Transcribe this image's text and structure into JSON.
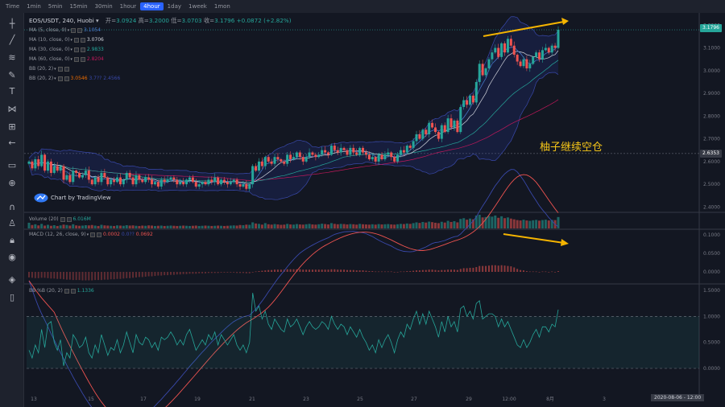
{
  "timeframes": [
    {
      "label": "Time",
      "active": false
    },
    {
      "label": "1min",
      "active": false
    },
    {
      "label": "5min",
      "active": false
    },
    {
      "label": "15min",
      "active": false
    },
    {
      "label": "30min",
      "active": false
    },
    {
      "label": "1hour",
      "active": false
    },
    {
      "label": "4hour",
      "active": true
    },
    {
      "label": "1day",
      "active": false
    },
    {
      "label": "1week",
      "active": false
    },
    {
      "label": "1mon",
      "active": false
    }
  ],
  "header": {
    "symbol": "EOS/USDT, 240, Huobi",
    "open_label": "开=",
    "open": "3.0924",
    "high_label": "高=",
    "high": "3.2000",
    "low_label": "低=",
    "low": "3.0703",
    "close_label": "收=",
    "close": "3.1796",
    "change": "+0.0872 (+2.82%)"
  },
  "legends": {
    "ma5": {
      "label": "MA (5, close, 0)",
      "value": "3.1054",
      "color": "#4a7fd4"
    },
    "ma10": {
      "label": "MA (10, close, 0)",
      "value": "3.0706",
      "color": "#d1d4dc"
    },
    "ma30": {
      "label": "MA (30, close, 0)",
      "value": "2.9833",
      "color": "#26a69a"
    },
    "ma60": {
      "label": "MA (60, close, 0)",
      "value": "2.8204",
      "color": "#c2185b"
    },
    "bb_hidden": {
      "label": "BB (20, 2)"
    },
    "bb": {
      "label": "BB (20, 2)",
      "v1": "3.0546",
      "v2": "3.7??",
      "v3": "2.4566"
    },
    "volume": {
      "label": "Volume (20)",
      "value": "6.016M"
    },
    "macd": {
      "label": "MACD (12, 26, close, 9)",
      "v1": "0.0002",
      "v2": "0.0??",
      "v3": "0.0692"
    },
    "bbpct": {
      "label": "BB %B (20, 2)",
      "value": "1.1336"
    }
  },
  "watermark": "Chart by TradingView",
  "annotation": "柚子继续空仓",
  "price_tags": {
    "last": "3.1796",
    "line": "2.6353"
  },
  "date_tag": "2020-08-06 - 12:00",
  "colors": {
    "up": "#26a69a",
    "down": "#ef5350",
    "arrow": "#f5b400",
    "bg": "#131722"
  },
  "tools": [
    "crosshair-icon",
    "trendline-icon",
    "fib-icon",
    "brush-icon",
    "text-icon",
    "pattern-icon",
    "prediction-icon",
    "back-arrow-icon",
    "ruler-icon",
    "zoom-icon",
    "magnet-icon",
    "lock-drawing-icon",
    "lock-icon",
    "eye-icon",
    "layers-icon",
    "trash-icon"
  ],
  "chart_data": {
    "type": "candlestick",
    "title": "EOS/USDT, 240, Huobi",
    "x_tick_labels": [
      "13",
      "15",
      "17",
      "19",
      "21",
      "23",
      "25",
      "27",
      "29",
      "12:00",
      "8月",
      "3"
    ],
    "price_axis": {
      "ticks": [
        "3.2000",
        "3.1000",
        "3.0000",
        "2.9000",
        "2.8000",
        "2.7000",
        "2.6000",
        "2.5000",
        "2.4000"
      ],
      "ylim": [
        2.38,
        3.24
      ]
    },
    "macd_axis": {
      "ticks": [
        "0.1000",
        "0.0500",
        "0.0000"
      ]
    },
    "bbpct_axis": {
      "ticks": [
        "1.5000",
        "1.0000",
        "0.5000",
        "0.0000"
      ]
    },
    "closes": [
      2.6,
      2.57,
      2.61,
      2.58,
      2.63,
      2.56,
      2.6,
      2.55,
      2.58,
      2.56,
      2.58,
      2.52,
      2.54,
      2.51,
      2.56,
      2.55,
      2.53,
      2.54,
      2.56,
      2.52,
      2.5,
      2.53,
      2.51,
      2.55,
      2.53,
      2.5,
      2.52,
      2.51,
      2.53,
      2.5,
      2.52,
      2.55,
      2.53,
      2.5,
      2.54,
      2.52,
      2.51,
      2.53,
      2.52,
      2.5,
      2.51,
      2.49,
      2.52,
      2.51,
      2.52,
      2.53,
      2.52,
      2.5,
      2.51,
      2.5,
      2.52,
      2.53,
      2.51,
      2.49,
      2.5,
      2.51,
      2.5,
      2.52,
      2.51,
      2.53,
      2.5,
      2.52,
      2.51,
      2.5,
      2.51,
      2.52,
      2.5,
      2.49,
      2.5,
      2.48,
      2.5,
      2.58,
      2.56,
      2.6,
      2.58,
      2.62,
      2.6,
      2.59,
      2.62,
      2.61,
      2.6,
      2.59,
      2.63,
      2.61,
      2.62,
      2.64,
      2.62,
      2.6,
      2.62,
      2.64,
      2.63,
      2.62,
      2.63,
      2.65,
      2.64,
      2.63,
      2.67,
      2.65,
      2.64,
      2.66,
      2.65,
      2.63,
      2.66,
      2.64,
      2.63,
      2.66,
      2.64,
      2.63,
      2.61,
      2.62,
      2.6,
      2.63,
      2.61,
      2.63,
      2.64,
      2.62,
      2.6,
      2.63,
      2.65,
      2.64,
      2.67,
      2.66,
      2.69,
      2.72,
      2.7,
      2.74,
      2.72,
      2.77,
      2.75,
      2.73,
      2.7,
      2.76,
      2.73,
      2.79,
      2.75,
      2.78,
      2.73,
      2.84,
      2.87,
      2.85,
      2.89,
      2.86,
      2.95,
      3.03,
      2.98,
      3.01,
      3.05,
      3.08,
      3.1,
      3.06,
      3.12,
      3.08,
      3.14,
      3.11,
      3.07,
      3.04,
      3.02,
      3.05,
      3.01,
      3.03,
      3.06,
      3.08,
      3.05,
      3.09,
      3.1,
      3.08,
      3.11,
      3.1,
      3.18
    ],
    "volumes": [
      3.0,
      1.8,
      2.2,
      1.6,
      2.4,
      1.5,
      1.9,
      1.4,
      1.7,
      1.3,
      1.6,
      2.0,
      1.8,
      1.5,
      2.2,
      1.6,
      1.4,
      1.5,
      1.7,
      1.6,
      1.8,
      1.5,
      1.3,
      1.9,
      1.6,
      1.5,
      1.4,
      1.3,
      1.6,
      1.5,
      1.4,
      1.7,
      1.5,
      1.6,
      1.4,
      1.3,
      1.5,
      1.4,
      1.6,
      1.5,
      1.3,
      1.4,
      1.5,
      1.3,
      1.4,
      1.5,
      1.4,
      1.3,
      1.4,
      1.5,
      1.4,
      1.3,
      1.4,
      1.5,
      1.3,
      1.4,
      1.5,
      1.4,
      1.3,
      1.4,
      1.5,
      1.4,
      1.3,
      1.4,
      1.5,
      1.6,
      1.5,
      1.8,
      1.7,
      2.0,
      1.9,
      3.2,
      2.6,
      2.4,
      2.0,
      2.8,
      2.2,
      2.0,
      2.3,
      2.1,
      1.9,
      2.0,
      2.4,
      2.1,
      2.0,
      2.3,
      2.1,
      2.0,
      2.2,
      2.4,
      2.1,
      2.0,
      2.2,
      2.5,
      2.3,
      2.1,
      2.8,
      2.4,
      2.2,
      2.4,
      2.3,
      2.1,
      2.3,
      2.2,
      2.0,
      2.4,
      2.2,
      2.1,
      2.0,
      2.2,
      2.0,
      2.3,
      2.1,
      2.2,
      2.3,
      2.1,
      2.0,
      2.2,
      2.4,
      2.3,
      2.6,
      2.4,
      2.8,
      3.2,
      2.9,
      3.4,
      3.1,
      3.6,
      3.3,
      3.0,
      2.8,
      3.5,
      3.1,
      4.0,
      3.4,
      3.8,
      3.2,
      5.0,
      5.4,
      4.6,
      5.2,
      4.8,
      6.8,
      7.2,
      5.8,
      6.0,
      6.6,
      6.2,
      6.8,
      5.6,
      6.4,
      5.4,
      5.8,
      5.2,
      4.8,
      4.4,
      4.2,
      4.6,
      4.2,
      4.0,
      4.3,
      4.5,
      4.1,
      4.4,
      4.6,
      4.2,
      4.5,
      4.4,
      6.0
    ],
    "macd_hist": [
      -0.015,
      -0.016,
      -0.017,
      -0.017,
      -0.016,
      -0.016,
      -0.017,
      -0.018,
      -0.018,
      -0.019,
      -0.019,
      -0.02,
      -0.021,
      -0.021,
      -0.022,
      -0.022,
      -0.022,
      -0.023,
      -0.023,
      -0.023,
      -0.023,
      -0.022,
      -0.022,
      -0.022,
      -0.021,
      -0.021,
      -0.02,
      -0.02,
      -0.019,
      -0.019,
      -0.018,
      -0.017,
      -0.017,
      -0.016,
      -0.015,
      -0.014,
      -0.014,
      -0.013,
      -0.012,
      -0.012,
      -0.011,
      -0.01,
      -0.01,
      -0.009,
      -0.009,
      -0.008,
      -0.008,
      -0.007,
      -0.007,
      -0.006,
      -0.006,
      -0.005,
      -0.005,
      -0.005,
      -0.004,
      -0.004,
      -0.004,
      -0.003,
      -0.003,
      -0.003,
      -0.003,
      -0.002,
      -0.002,
      -0.002,
      -0.002,
      -0.002,
      -0.003,
      -0.003,
      -0.003,
      -0.004,
      -0.004,
      0.0,
      0.001,
      0.002,
      0.003,
      0.004,
      0.005,
      0.005,
      0.006,
      0.006,
      0.006,
      0.006,
      0.007,
      0.007,
      0.007,
      0.007,
      0.007,
      0.006,
      0.006,
      0.006,
      0.006,
      0.006,
      0.006,
      0.006,
      0.006,
      0.006,
      0.007,
      0.007,
      0.006,
      0.006,
      0.006,
      0.005,
      0.005,
      0.005,
      0.004,
      0.004,
      0.004,
      0.003,
      0.002,
      0.002,
      0.001,
      0.001,
      0.001,
      0.001,
      0.001,
      0.001,
      0.0,
      0.0,
      0.001,
      0.001,
      0.002,
      0.002,
      0.003,
      0.004,
      0.004,
      0.005,
      0.005,
      0.006,
      0.006,
      0.005,
      0.004,
      0.005,
      0.005,
      0.006,
      0.006,
      0.006,
      0.005,
      0.008,
      0.01,
      0.01,
      0.011,
      0.011,
      0.013,
      0.016,
      0.016,
      0.016,
      0.017,
      0.018,
      0.018,
      0.017,
      0.018,
      0.017,
      0.016,
      0.015,
      0.012,
      0.008,
      0.005,
      0.004,
      0.002,
      0.001,
      0.001,
      0.001,
      0.0,
      0.001,
      0.001,
      0.0,
      0.001,
      0.0,
      0.002
    ],
    "bb_pct_b": [
      0.35,
      0.2,
      0.45,
      0.3,
      0.75,
      0.4,
      0.85,
      0.9,
      0.5,
      0.35,
      0.55,
      0.05,
      0.3,
      0.2,
      0.65,
      0.55,
      0.4,
      0.45,
      0.6,
      0.3,
      0.2,
      0.45,
      0.3,
      0.65,
      0.45,
      0.25,
      0.4,
      0.35,
      0.55,
      0.3,
      0.45,
      0.7,
      0.5,
      0.3,
      0.65,
      0.5,
      0.45,
      0.6,
      0.55,
      0.4,
      0.5,
      0.35,
      0.6,
      0.55,
      0.6,
      0.7,
      0.6,
      0.45,
      0.55,
      0.45,
      0.65,
      0.75,
      0.55,
      0.35,
      0.45,
      0.55,
      0.45,
      0.65,
      0.55,
      0.7,
      0.45,
      0.65,
      0.55,
      0.45,
      0.55,
      0.65,
      0.45,
      0.35,
      0.45,
      0.3,
      0.5,
      1.45,
      1.1,
      1.2,
      0.95,
      1.1,
      0.85,
      0.75,
      0.95,
      0.85,
      0.75,
      0.7,
      0.95,
      0.8,
      0.85,
      0.95,
      0.8,
      0.65,
      0.8,
      0.9,
      0.8,
      0.75,
      0.8,
      0.9,
      0.85,
      0.75,
      1.0,
      0.85,
      0.75,
      0.85,
      0.8,
      0.65,
      0.8,
      0.7,
      0.6,
      0.75,
      0.6,
      0.5,
      0.35,
      0.45,
      0.3,
      0.55,
      0.4,
      0.55,
      0.65,
      0.5,
      0.3,
      0.55,
      0.7,
      0.6,
      0.85,
      0.75,
      0.95,
      1.1,
      0.85,
      1.05,
      0.85,
      1.1,
      0.95,
      0.8,
      0.6,
      0.9,
      0.7,
      1.0,
      0.8,
      0.9,
      0.7,
      1.15,
      1.2,
      1.0,
      1.1,
      0.95,
      1.25,
      1.3,
      0.95,
      1.0,
      1.05,
      1.05,
      1.0,
      0.8,
      0.95,
      0.8,
      0.9,
      0.75,
      0.6,
      0.45,
      0.4,
      0.55,
      0.4,
      0.5,
      0.65,
      0.75,
      0.6,
      0.8,
      0.8,
      0.7,
      0.85,
      0.8,
      1.13
    ]
  }
}
